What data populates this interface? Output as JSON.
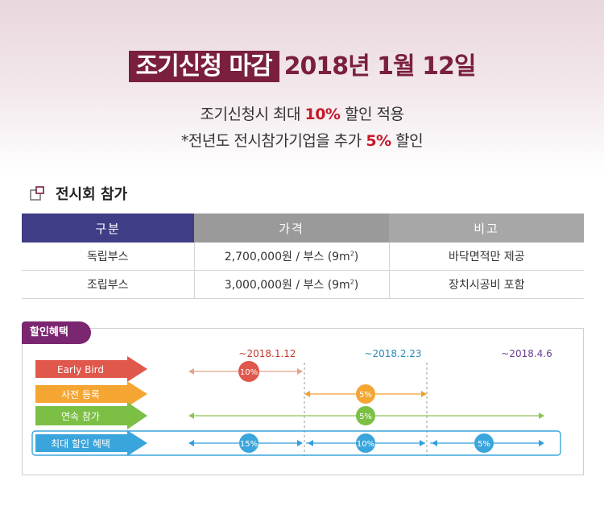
{
  "hero": {
    "deadline_label": "조기신청 마감",
    "deadline_date": "2018년 1월 12일",
    "notice1": {
      "pre": "조기신청시 최대 ",
      "highlight": "10%",
      "post": " 할인 적용"
    },
    "notice2": {
      "pre": "*전년도 전시참가기업을 추가 ",
      "highlight": "5%",
      "post": " 할인"
    }
  },
  "section": {
    "title": "전시회 참가",
    "icon": "windows-icon"
  },
  "table": {
    "headers": [
      "구분",
      "가격",
      "비고"
    ],
    "rows": [
      {
        "type": "독립부스",
        "price": "2,700,000원 / 부스 (9m",
        "unit_sup": "2",
        "price_end": ")",
        "note": "바닥면적만 제공"
      },
      {
        "type": "조립부스",
        "price": "3,000,000원 / 부스 (9m",
        "unit_sup": "2",
        "price_end": ")",
        "note": "장치시공비 포함"
      }
    ]
  },
  "benefit": {
    "tag": "할인혜택",
    "dates": [
      {
        "label": "~2018.1.12",
        "color": "#c0392b"
      },
      {
        "label": "~2018.2.23",
        "color": "#2a8ab8"
      },
      {
        "label": "~2018.4.6",
        "color": "#6b3d8e"
      }
    ],
    "rows": [
      {
        "label": "Early Bird",
        "color": "#e0574b",
        "line_color": "#e0a58c",
        "badges": [
          "10%"
        ]
      },
      {
        "label": "사전 등록",
        "color": "#f5a532",
        "line_color": "#f0a030",
        "badges": [
          "5%"
        ]
      },
      {
        "label": "연속 참가",
        "color": "#7cbf45",
        "line_color": "#8dc456",
        "badges": [
          "5%"
        ]
      },
      {
        "label": "최대 할인 혜택",
        "color": "#3aa5dc",
        "line_color": "#2f9edc",
        "badges": [
          "15%",
          "10%",
          "5%"
        ]
      }
    ]
  }
}
